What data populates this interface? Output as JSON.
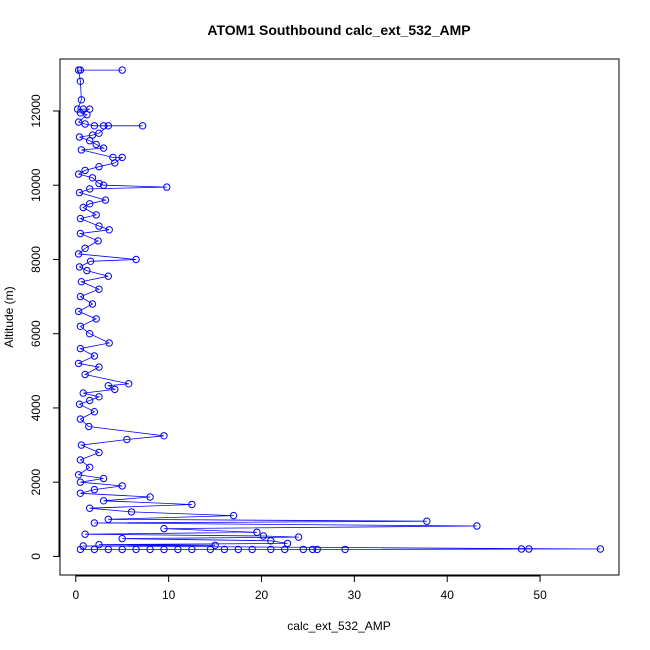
{
  "chart_data": {
    "type": "line",
    "title": "ATOM1 Southbound calc_ext_532_AMP",
    "xlabel": "calc_ext_532_AMP",
    "ylabel": "Altitude (m)",
    "xlim": [
      -1.7,
      58.5
    ],
    "ylim": [
      -500,
      13400
    ],
    "x_ticks": [
      0,
      10,
      20,
      30,
      40,
      50
    ],
    "y_ticks": [
      0,
      2000,
      4000,
      6000,
      8000,
      10000,
      12000
    ],
    "grid": false,
    "series": [
      {
        "color": "#0000ff",
        "marker": "open-circle",
        "points": [
          [
            0.5,
            13100
          ],
          [
            5.0,
            13100
          ],
          [
            0.3,
            13100
          ],
          [
            0.5,
            12800
          ],
          [
            0.6,
            12300
          ],
          [
            0.2,
            12050
          ],
          [
            0.8,
            12050
          ],
          [
            1.5,
            12050
          ],
          [
            0.5,
            11950
          ],
          [
            1.2,
            11900
          ],
          [
            0.3,
            11700
          ],
          [
            1.0,
            11650
          ],
          [
            2.0,
            11600
          ],
          [
            3.0,
            11600
          ],
          [
            7.2,
            11600
          ],
          [
            3.5,
            11600
          ],
          [
            2.5,
            11400
          ],
          [
            1.8,
            11350
          ],
          [
            0.4,
            11300
          ],
          [
            1.5,
            11200
          ],
          [
            2.2,
            11100
          ],
          [
            3.0,
            11000
          ],
          [
            0.6,
            10950
          ],
          [
            4.0,
            10750
          ],
          [
            5.0,
            10750
          ],
          [
            4.2,
            10600
          ],
          [
            2.5,
            10500
          ],
          [
            1.0,
            10400
          ],
          [
            0.3,
            10300
          ],
          [
            1.8,
            10200
          ],
          [
            2.5,
            10050
          ],
          [
            3.0,
            10000
          ],
          [
            9.8,
            9950
          ],
          [
            1.5,
            9900
          ],
          [
            0.4,
            9800
          ],
          [
            3.2,
            9600
          ],
          [
            1.5,
            9500
          ],
          [
            0.8,
            9400
          ],
          [
            2.2,
            9200
          ],
          [
            0.5,
            9100
          ],
          [
            2.5,
            8900
          ],
          [
            3.6,
            8800
          ],
          [
            0.5,
            8700
          ],
          [
            2.4,
            8500
          ],
          [
            1.0,
            8300
          ],
          [
            0.3,
            8150
          ],
          [
            6.5,
            8000
          ],
          [
            1.6,
            7950
          ],
          [
            0.4,
            7800
          ],
          [
            1.2,
            7700
          ],
          [
            3.5,
            7550
          ],
          [
            0.6,
            7400
          ],
          [
            2.5,
            7200
          ],
          [
            0.5,
            7000
          ],
          [
            1.8,
            6800
          ],
          [
            0.3,
            6600
          ],
          [
            2.2,
            6400
          ],
          [
            0.5,
            6200
          ],
          [
            1.5,
            6000
          ],
          [
            3.6,
            5750
          ],
          [
            0.5,
            5600
          ],
          [
            2.0,
            5400
          ],
          [
            0.3,
            5200
          ],
          [
            2.5,
            5100
          ],
          [
            1.0,
            4900
          ],
          [
            5.7,
            4650
          ],
          [
            3.5,
            4600
          ],
          [
            4.2,
            4500
          ],
          [
            0.8,
            4400
          ],
          [
            2.5,
            4300
          ],
          [
            1.5,
            4200
          ],
          [
            0.4,
            4100
          ],
          [
            2.0,
            3900
          ],
          [
            0.5,
            3700
          ],
          [
            1.4,
            3500
          ],
          [
            9.5,
            3250
          ],
          [
            5.5,
            3150
          ],
          [
            0.6,
            3000
          ],
          [
            2.5,
            2800
          ],
          [
            0.5,
            2600
          ],
          [
            1.5,
            2400
          ],
          [
            0.3,
            2200
          ],
          [
            3.0,
            2100
          ],
          [
            0.5,
            2000
          ],
          [
            5.0,
            1900
          ],
          [
            2.0,
            1800
          ],
          [
            0.5,
            1700
          ],
          [
            8.0,
            1600
          ],
          [
            3.0,
            1500
          ],
          [
            12.5,
            1400
          ],
          [
            1.5,
            1300
          ],
          [
            6.0,
            1200
          ],
          [
            17.0,
            1100
          ],
          [
            3.5,
            1000
          ],
          [
            37.8,
            950
          ],
          [
            2.0,
            900
          ],
          [
            43.2,
            820
          ],
          [
            9.5,
            750
          ],
          [
            19.5,
            650
          ],
          [
            1.0,
            600
          ],
          [
            20.2,
            550
          ],
          [
            24.0,
            520
          ],
          [
            5.0,
            480
          ],
          [
            21.0,
            420
          ],
          [
            22.8,
            350
          ],
          [
            2.5,
            320
          ],
          [
            15.0,
            300
          ],
          [
            0.8,
            280
          ],
          [
            56.5,
            200
          ],
          [
            48.0,
            200
          ],
          [
            48.8,
            200
          ],
          [
            29.0,
            190
          ],
          [
            26.0,
            190
          ],
          [
            25.5,
            190
          ],
          [
            24.5,
            190
          ],
          [
            22.5,
            190
          ],
          [
            21.0,
            190
          ],
          [
            19.0,
            190
          ],
          [
            17.5,
            190
          ],
          [
            16.0,
            190
          ],
          [
            14.5,
            190
          ],
          [
            12.5,
            190
          ],
          [
            11.0,
            190
          ],
          [
            9.5,
            190
          ],
          [
            8.0,
            190
          ],
          [
            6.5,
            190
          ],
          [
            5.0,
            190
          ],
          [
            3.5,
            190
          ],
          [
            2.0,
            190
          ],
          [
            0.5,
            190
          ]
        ]
      }
    ]
  }
}
